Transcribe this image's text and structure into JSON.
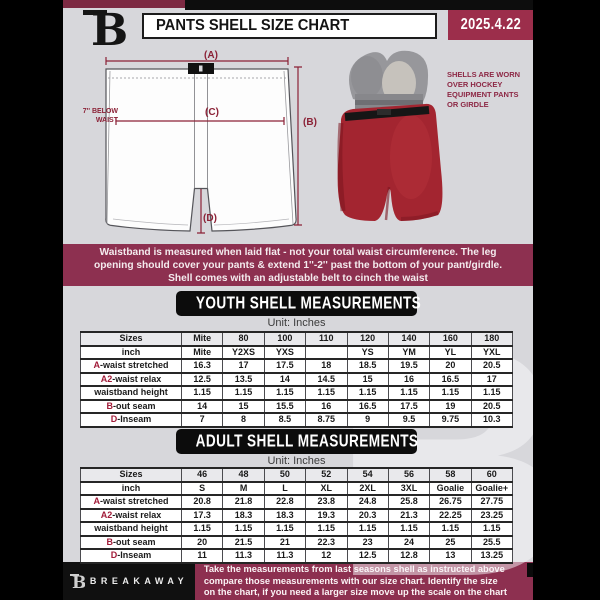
{
  "header": {
    "title": "PANTS SHELL SIZE CHART",
    "date": "2025.4.22"
  },
  "diagram": {
    "label_a": "(A)",
    "label_b": "(B)",
    "label_c": "(C)",
    "label_d": "(D)",
    "waist_note": "7'' BELOW\nWAIST",
    "side_note": "SHELLS ARE WORN\nOVER HOCKEY\nEQUIPMENT PANTS\nOR GIRDLE"
  },
  "banner": {
    "text": "Waistband is measured when laid flat - not your total waist circumference. The leg\nopening should cover your pants & extend 1''-2'' past the bottom of your pant/girdle.\nShell comes with an adjustable belt to cinch the waist"
  },
  "youth": {
    "heading": "YOUTH SHELL MEASUREMENTS",
    "unit": "Unit: Inches",
    "rows": [
      {
        "red": "",
        "label": "Sizes",
        "values": [
          "Mite",
          "80",
          "100",
          "110",
          "120",
          "140",
          "160",
          "180"
        ]
      },
      {
        "red": "",
        "label": "inch",
        "values": [
          "Mite",
          "Y2XS",
          "YXS",
          "",
          "YS",
          "YM",
          "YL",
          "YXL"
        ]
      },
      {
        "red": "A",
        "label": "-waist stretched",
        "values": [
          "16.3",
          "17",
          "17.5",
          "18",
          "18.5",
          "19.5",
          "20",
          "20.5"
        ]
      },
      {
        "red": "A2",
        "label": "-waist relax",
        "values": [
          "12.5",
          "13.5",
          "14",
          "14.5",
          "15",
          "16",
          "16.5",
          "17"
        ]
      },
      {
        "red": "",
        "label": "waistband height",
        "values": [
          "1.15",
          "1.15",
          "1.15",
          "1.15",
          "1.15",
          "1.15",
          "1.15",
          "1.15"
        ]
      },
      {
        "red": "B",
        "label": "-out seam",
        "values": [
          "14",
          "15",
          "15.5",
          "16",
          "16.5",
          "17.5",
          "19",
          "20.5"
        ]
      },
      {
        "red": "D",
        "label": "-Inseam",
        "values": [
          "7",
          "8",
          "8.5",
          "8.75",
          "9",
          "9.5",
          "9.75",
          "10.3"
        ]
      }
    ]
  },
  "adult": {
    "heading": "ADULT SHELL MEASUREMENTS",
    "unit": "Unit: Inches",
    "rows": [
      {
        "red": "",
        "label": "Sizes",
        "values": [
          "46",
          "48",
          "50",
          "52",
          "54",
          "56",
          "58",
          "60"
        ]
      },
      {
        "red": "",
        "label": "inch",
        "values": [
          "S",
          "M",
          "L",
          "XL",
          "2XL",
          "3XL",
          "Goalie",
          "Goalie+"
        ]
      },
      {
        "red": "A",
        "label": "-waist stretched",
        "values": [
          "20.8",
          "21.8",
          "22.8",
          "23.8",
          "24.8",
          "25.8",
          "26.75",
          "27.75"
        ]
      },
      {
        "red": "A2",
        "label": "-waist relax",
        "values": [
          "17.3",
          "18.3",
          "18.3",
          "19.3",
          "20.3",
          "21.3",
          "22.25",
          "23.25"
        ]
      },
      {
        "red": "",
        "label": "waistband height",
        "values": [
          "1.15",
          "1.15",
          "1.15",
          "1.15",
          "1.15",
          "1.15",
          "1.15",
          "1.15"
        ]
      },
      {
        "red": "B",
        "label": "-out seam",
        "values": [
          "20",
          "21.5",
          "21",
          "22.3",
          "23",
          "24",
          "25",
          "25.5"
        ]
      },
      {
        "red": "D",
        "label": "-Inseam",
        "values": [
          "11",
          "11.3",
          "11.3",
          "12",
          "12.5",
          "12.8",
          "13",
          "13.25"
        ]
      }
    ]
  },
  "footer": {
    "brand": "BREAKAWAY",
    "text": "Take the measurements from last seasons shell as instructed above\ncompare those measurements  with our size chart. Identify the size\non the chart, if you need a larger size move up the scale on the chart"
  },
  "watermark_letter": "B",
  "colors": {
    "banner_maroon": "#8d3050",
    "date_maroon": "#9c2e4b",
    "topbar_maroon": "#7d2a43",
    "measure_line": "#8b2136",
    "table_accent_red": "#a11b38",
    "shell_red": "#a32530",
    "page_gray": "#d7d7db"
  }
}
